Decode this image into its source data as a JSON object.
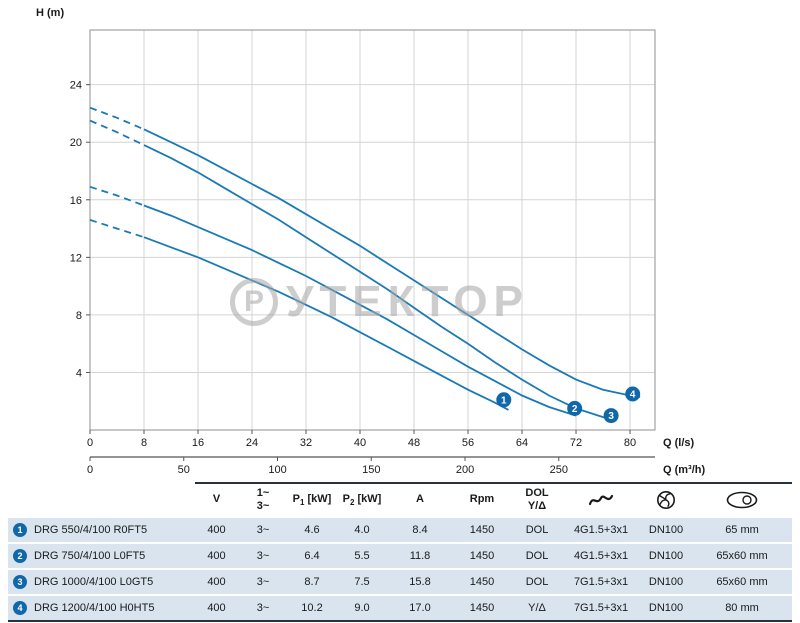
{
  "watermark": {
    "first_letter": "Р",
    "rest": "УТЕКТОР"
  },
  "chart_data": {
    "type": "line",
    "ylabel": "H (m)",
    "curve_color": "#1a7ab5",
    "marker_color": "#1168a8",
    "grid": true,
    "xlim_ls": [
      0,
      83.7
    ],
    "ylim": [
      0,
      27.8
    ],
    "y_ticks": [
      4,
      8,
      12,
      16,
      20,
      24
    ],
    "x_axis_primary": {
      "label": "Q (l/s)",
      "ticks": [
        0,
        8,
        16,
        24,
        32,
        40,
        48,
        56,
        64,
        72,
        80
      ]
    },
    "x_axis_secondary": {
      "label": "Q (m³/h)",
      "ticks": [
        0,
        50,
        100,
        150,
        200,
        250
      ],
      "ls_per_unit": 0.27778
    },
    "series": [
      {
        "name": "1",
        "dash_split": 2,
        "marker": [
          61.3,
          2.1
        ],
        "points": [
          [
            0,
            14.6
          ],
          [
            4,
            14.0
          ],
          [
            8,
            13.4
          ],
          [
            12,
            12.7
          ],
          [
            16,
            12.0
          ],
          [
            20,
            11.2
          ],
          [
            24,
            10.4
          ],
          [
            28,
            9.6
          ],
          [
            32,
            8.7
          ],
          [
            36,
            7.8
          ],
          [
            40,
            6.8
          ],
          [
            44,
            5.8
          ],
          [
            48,
            4.8
          ],
          [
            52,
            3.8
          ],
          [
            56,
            2.8
          ],
          [
            60,
            1.9
          ],
          [
            62,
            1.4
          ]
        ]
      },
      {
        "name": "2",
        "dash_split": 2,
        "marker": [
          71.8,
          1.5
        ],
        "points": [
          [
            0,
            16.9
          ],
          [
            4,
            16.3
          ],
          [
            8,
            15.6
          ],
          [
            12,
            14.9
          ],
          [
            16,
            14.1
          ],
          [
            20,
            13.3
          ],
          [
            24,
            12.5
          ],
          [
            28,
            11.6
          ],
          [
            32,
            10.7
          ],
          [
            36,
            9.7
          ],
          [
            40,
            8.7
          ],
          [
            44,
            7.7
          ],
          [
            48,
            6.6
          ],
          [
            52,
            5.5
          ],
          [
            56,
            4.4
          ],
          [
            60,
            3.4
          ],
          [
            64,
            2.4
          ],
          [
            68,
            1.6
          ],
          [
            72,
            1.0
          ]
        ]
      },
      {
        "name": "3",
        "dash_split": 2,
        "marker": [
          77.2,
          1.0
        ],
        "points": [
          [
            0,
            21.5
          ],
          [
            4,
            20.7
          ],
          [
            8,
            19.8
          ],
          [
            12,
            18.9
          ],
          [
            16,
            17.9
          ],
          [
            20,
            16.8
          ],
          [
            24,
            15.7
          ],
          [
            28,
            14.6
          ],
          [
            32,
            13.4
          ],
          [
            36,
            12.2
          ],
          [
            40,
            11.0
          ],
          [
            44,
            9.8
          ],
          [
            48,
            8.5
          ],
          [
            52,
            7.2
          ],
          [
            56,
            6.0
          ],
          [
            60,
            4.7
          ],
          [
            64,
            3.5
          ],
          [
            68,
            2.4
          ],
          [
            72,
            1.5
          ],
          [
            76,
            0.9
          ],
          [
            77.5,
            0.7
          ]
        ]
      },
      {
        "name": "4",
        "dash_split": 2,
        "marker": [
          80.4,
          2.5
        ],
        "points": [
          [
            0,
            22.4
          ],
          [
            4,
            21.7
          ],
          [
            8,
            20.9
          ],
          [
            12,
            20.0
          ],
          [
            16,
            19.1
          ],
          [
            20,
            18.1
          ],
          [
            24,
            17.1
          ],
          [
            28,
            16.1
          ],
          [
            32,
            15.0
          ],
          [
            36,
            13.9
          ],
          [
            40,
            12.8
          ],
          [
            44,
            11.6
          ],
          [
            48,
            10.4
          ],
          [
            52,
            9.2
          ],
          [
            56,
            8.0
          ],
          [
            60,
            6.8
          ],
          [
            64,
            5.6
          ],
          [
            68,
            4.5
          ],
          [
            72,
            3.5
          ],
          [
            76,
            2.8
          ],
          [
            80,
            2.4
          ],
          [
            81.5,
            2.3
          ]
        ]
      }
    ]
  },
  "table": {
    "header": {
      "v": "V",
      "phase_top": "1~",
      "phase_bottom": "3~",
      "p1": {
        "letter": "P",
        "sub": "1",
        "unit": "[kW]"
      },
      "p2": {
        "letter": "P",
        "sub": "2",
        "unit": "[kW]"
      },
      "a": "A",
      "rpm": "Rpm",
      "start_top": "DOL",
      "start_bottom": "Y/Δ",
      "cable_icon": "cable-icon",
      "impeller_icon": "impeller-icon",
      "passage_icon": "free-passage-icon"
    },
    "rows": [
      {
        "num": "1",
        "model": "DRG 550/4/100 R0FT5",
        "v": "400",
        "phase": "3~",
        "p1": "4.6",
        "p2": "4.0",
        "a": "8.4",
        "rpm": "1450",
        "start": "DOL",
        "cable": "4G1.5+3x1",
        "dn": "DN100",
        "passage": "65 mm"
      },
      {
        "num": "2",
        "model": "DRG 750/4/100 L0FT5",
        "v": "400",
        "phase": "3~",
        "p1": "6.4",
        "p2": "5.5",
        "a": "11.8",
        "rpm": "1450",
        "start": "DOL",
        "cable": "4G1.5+3x1",
        "dn": "DN100",
        "passage": "65x60 mm"
      },
      {
        "num": "3",
        "model": "DRG 1000/4/100 L0GT5",
        "v": "400",
        "phase": "3~",
        "p1": "8.7",
        "p2": "7.5",
        "a": "15.8",
        "rpm": "1450",
        "start": "DOL",
        "cable": "7G1.5+3x1",
        "dn": "DN100",
        "passage": "65x60 mm"
      },
      {
        "num": "4",
        "model": "DRG 1200/4/100 H0HT5",
        "v": "400",
        "phase": "3~",
        "p1": "10.2",
        "p2": "9.0",
        "a": "17.0",
        "rpm": "1450",
        "start": "Y/Δ",
        "cable": "7G1.5+3x1",
        "dn": "DN100",
        "passage": "80 mm"
      }
    ]
  }
}
